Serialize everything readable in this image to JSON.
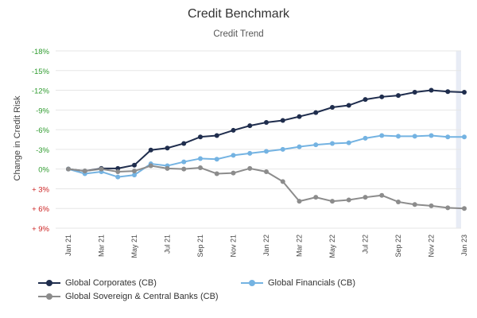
{
  "chart_data": {
    "type": "line",
    "title": "Credit Benchmark",
    "subtitle": "Credit Trend",
    "ylabel": "Change in Credit Risk",
    "xlabel": "",
    "ylim": [
      -18,
      9
    ],
    "y_axis_reversed": true,
    "y_ticks": [
      -18,
      -15,
      -12,
      -9,
      -6,
      -3,
      0,
      3,
      6,
      9
    ],
    "y_tick_labels": [
      "-18%",
      "-15%",
      "-12%",
      "-9%",
      "-6%",
      "-3%",
      "0%",
      "+ 3%",
      "+ 6%",
      "+ 9%"
    ],
    "x": [
      "Jan 21",
      "Feb 21",
      "Mar 21",
      "Apr 21",
      "May 21",
      "Jun 21",
      "Jul 21",
      "Aug 21",
      "Sep 21",
      "Oct 21",
      "Nov 21",
      "Dec 21",
      "Jan 22",
      "Feb 22",
      "Mar 22",
      "Apr 22",
      "May 22",
      "Jun 22",
      "Jul 22",
      "Aug 22",
      "Sep 22",
      "Oct 22",
      "Nov 22",
      "Dec 22",
      "Jan 23"
    ],
    "x_tick_labels": [
      "Jan 21",
      "Mar 21",
      "May 21",
      "Jul 21",
      "Sep 21",
      "Nov 21",
      "Jan 22",
      "Mar 22",
      "May 22",
      "Jul 22",
      "Sep 22",
      "Nov 22",
      "Jan 23"
    ],
    "grid": true,
    "legend_position": "bottom",
    "highlight_last_period": true,
    "series": [
      {
        "name": "Global Corporates (CB)",
        "color": "#1f2d4d",
        "values": [
          0,
          0.3,
          -0.1,
          -0.1,
          -0.6,
          -2.9,
          -3.2,
          -3.9,
          -4.9,
          -5.1,
          -5.9,
          -6.6,
          -7.1,
          -7.4,
          -8.0,
          -8.6,
          -9.4,
          -9.7,
          -10.6,
          -11.0,
          -11.2,
          -11.7,
          -12.0,
          -11.8,
          -11.7
        ]
      },
      {
        "name": "Global Financials (CB)",
        "color": "#74b3e2",
        "values": [
          0,
          0.7,
          0.4,
          1.2,
          0.9,
          -0.8,
          -0.5,
          -1.1,
          -1.6,
          -1.5,
          -2.1,
          -2.4,
          -2.7,
          -3.0,
          -3.4,
          -3.7,
          -3.9,
          -4.0,
          -4.7,
          -5.1,
          -5.0,
          -5.0,
          -5.1,
          -4.9,
          -4.9
        ]
      },
      {
        "name": "Global Sovereign & Central Banks (CB)",
        "color": "#8c8c8c",
        "values": [
          0,
          0.3,
          0.0,
          0.4,
          0.3,
          -0.5,
          -0.1,
          0.0,
          -0.2,
          0.7,
          0.6,
          -0.1,
          0.4,
          1.9,
          4.9,
          4.3,
          4.9,
          4.7,
          4.3,
          4.0,
          5.0,
          5.4,
          5.6,
          5.9,
          6.0
        ]
      }
    ]
  },
  "colors": {
    "axis_tick_label": "#2e9b2e",
    "axis_tick_label_positive_risk": "#cc2222",
    "grid": "#e6e6e6",
    "highlight_band": "#e8ecf5"
  }
}
